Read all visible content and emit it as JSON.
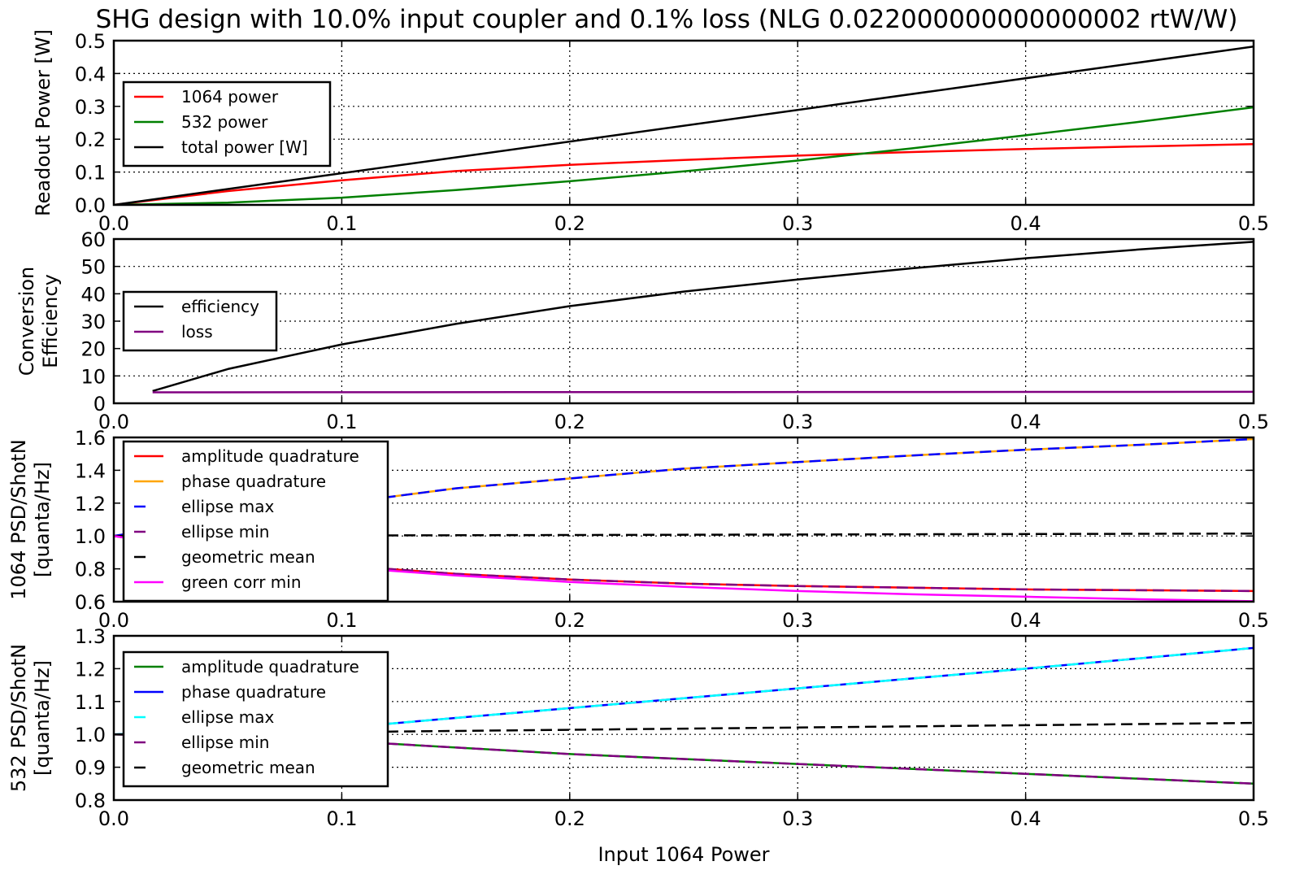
{
  "figure": {
    "title": "SHG design with 10.0% input coupler and 0.1% loss (NLG 0.022000000000000002 rtW/W)",
    "xlabel": "Input 1064 Power"
  },
  "chart_data": [
    {
      "type": "line",
      "ylabel": [
        "Readout Power [W]"
      ],
      "xlim": [
        0,
        0.5
      ],
      "ylim": [
        0,
        0.5
      ],
      "xticks": [
        "0.0",
        "0.1",
        "0.2",
        "0.3",
        "0.4",
        "0.5"
      ],
      "yticks": [
        "0.0",
        "0.1",
        "0.2",
        "0.3",
        "0.4",
        "0.5"
      ],
      "grid": true,
      "legend": "upper-left",
      "series": [
        {
          "name": "1064 power",
          "color": "#ff0000",
          "dash": "solid",
          "x": [
            0,
            0.05,
            0.1,
            0.15,
            0.2,
            0.25,
            0.3,
            0.35,
            0.4,
            0.45,
            0.5
          ],
          "y": [
            0,
            0.042,
            0.075,
            0.103,
            0.122,
            0.137,
            0.15,
            0.161,
            0.17,
            0.178,
            0.185
          ]
        },
        {
          "name": "532 power",
          "color": "#008000",
          "dash": "solid",
          "x": [
            0,
            0.05,
            0.1,
            0.15,
            0.2,
            0.25,
            0.3,
            0.35,
            0.4,
            0.45,
            0.5
          ],
          "y": [
            0,
            0.007,
            0.022,
            0.045,
            0.072,
            0.102,
            0.135,
            0.172,
            0.212,
            0.253,
            0.297
          ]
        },
        {
          "name": "total power [W]",
          "color": "#000000",
          "dash": "solid",
          "x": [
            0,
            0.5
          ],
          "y": [
            0,
            0.482
          ]
        }
      ]
    },
    {
      "type": "line",
      "ylabel": [
        "Conversion",
        "Efficiency"
      ],
      "xlim": [
        0,
        0.5
      ],
      "ylim": [
        0,
        60
      ],
      "xticks": [
        "0.0",
        "0.1",
        "0.2",
        "0.3",
        "0.4",
        "0.5"
      ],
      "yticks": [
        "0",
        "10",
        "20",
        "30",
        "40",
        "50",
        "60"
      ],
      "grid": true,
      "legend": "center-left",
      "series": [
        {
          "name": "efficiency",
          "color": "#000000",
          "dash": "solid",
          "x": [
            0.017,
            0.05,
            0.1,
            0.15,
            0.2,
            0.25,
            0.3,
            0.35,
            0.4,
            0.45,
            0.5
          ],
          "y": [
            4.5,
            12.5,
            21.5,
            29.0,
            35.5,
            40.8,
            45.2,
            49.3,
            53.0,
            56.2,
            59.0
          ]
        },
        {
          "name": "loss",
          "color": "#800080",
          "dash": "solid",
          "x": [
            0.017,
            0.5
          ],
          "y": [
            4.0,
            4.2
          ]
        }
      ]
    },
    {
      "type": "line",
      "ylabel": [
        "1064 PSD/ShotN",
        "[quanta/Hz]"
      ],
      "xlim": [
        0,
        0.5
      ],
      "ylim": [
        0.6,
        1.6
      ],
      "xticks": [
        "0.0",
        "0.1",
        "0.2",
        "0.3",
        "0.4",
        "0.5"
      ],
      "yticks": [
        "0.6",
        "0.8",
        "1.0",
        "1.2",
        "1.4",
        "1.6"
      ],
      "grid": true,
      "legend": "upper-left",
      "series": [
        {
          "name": "amplitude quadrature",
          "color": "#ff0000",
          "dash": "solid",
          "x": [
            0,
            0.05,
            0.1,
            0.15,
            0.2,
            0.25,
            0.3,
            0.35,
            0.4,
            0.45,
            0.5
          ],
          "y": [
            1.0,
            0.9,
            0.82,
            0.77,
            0.735,
            0.71,
            0.695,
            0.685,
            0.675,
            0.67,
            0.665
          ]
        },
        {
          "name": "phase quadrature",
          "color": "#ffa500",
          "dash": "solid",
          "x": [
            0,
            0.05,
            0.1,
            0.15,
            0.2,
            0.25,
            0.3,
            0.35,
            0.4,
            0.45,
            0.5
          ],
          "y": [
            1.0,
            1.11,
            1.2,
            1.29,
            1.35,
            1.41,
            1.45,
            1.49,
            1.525,
            1.555,
            1.59
          ]
        },
        {
          "name": "ellipse max",
          "color": "#0000ff",
          "dash": "dashed",
          "x": [
            0,
            0.05,
            0.1,
            0.15,
            0.2,
            0.25,
            0.3,
            0.35,
            0.4,
            0.45,
            0.5
          ],
          "y": [
            1.0,
            1.11,
            1.2,
            1.29,
            1.35,
            1.41,
            1.45,
            1.49,
            1.525,
            1.555,
            1.59
          ]
        },
        {
          "name": "ellipse min",
          "color": "#800080",
          "dash": "dashed",
          "x": [
            0,
            0.05,
            0.1,
            0.15,
            0.2,
            0.25,
            0.3,
            0.35,
            0.4,
            0.45,
            0.5
          ],
          "y": [
            1.0,
            0.9,
            0.82,
            0.77,
            0.735,
            0.71,
            0.695,
            0.685,
            0.675,
            0.67,
            0.665
          ]
        },
        {
          "name": "geometric mean",
          "color": "#000000",
          "dash": "dashed",
          "x": [
            0,
            0.5
          ],
          "y": [
            1.0,
            1.015
          ]
        },
        {
          "name": "green corr min",
          "color": "#ff00ff",
          "dash": "solid",
          "x": [
            0,
            0.05,
            0.1,
            0.15,
            0.2,
            0.25,
            0.3,
            0.35,
            0.4,
            0.45,
            0.5
          ],
          "y": [
            1.0,
            0.89,
            0.81,
            0.76,
            0.72,
            0.69,
            0.665,
            0.645,
            0.63,
            0.615,
            0.603
          ]
        }
      ]
    },
    {
      "type": "line",
      "ylabel": [
        "532  PSD/ShotN",
        "[quanta/Hz]"
      ],
      "xlim": [
        0,
        0.5
      ],
      "ylim": [
        0.8,
        1.3
      ],
      "xticks": [
        "0.0",
        "0.1",
        "0.2",
        "0.3",
        "0.4",
        "0.5"
      ],
      "yticks": [
        "0.8",
        "0.9",
        "1.0",
        "1.1",
        "1.2",
        "1.3"
      ],
      "grid": true,
      "legend": "center-left",
      "series": [
        {
          "name": "amplitude quadrature",
          "color": "#008000",
          "dash": "solid",
          "x": [
            0,
            0.1,
            0.2,
            0.3,
            0.4,
            0.5
          ],
          "y": [
            1.0,
            0.98,
            0.94,
            0.91,
            0.88,
            0.85
          ]
        },
        {
          "name": "phase quadrature",
          "color": "#0000ff",
          "dash": "solid",
          "x": [
            0,
            0.1,
            0.2,
            0.3,
            0.4,
            0.5
          ],
          "y": [
            1.0,
            1.02,
            1.08,
            1.14,
            1.2,
            1.263
          ]
        },
        {
          "name": "ellipse max",
          "color": "#00ffff",
          "dash": "dashed",
          "x": [
            0,
            0.1,
            0.2,
            0.3,
            0.4,
            0.5
          ],
          "y": [
            1.0,
            1.02,
            1.08,
            1.14,
            1.2,
            1.263
          ]
        },
        {
          "name": "ellipse min",
          "color": "#800080",
          "dash": "dashed",
          "x": [
            0,
            0.1,
            0.2,
            0.3,
            0.4,
            0.5
          ],
          "y": [
            1.0,
            0.98,
            0.94,
            0.91,
            0.88,
            0.85
          ]
        },
        {
          "name": "geometric mean",
          "color": "#000000",
          "dash": "dashed",
          "x": [
            0,
            0.5
          ],
          "y": [
            1.0,
            1.035
          ]
        }
      ]
    }
  ]
}
